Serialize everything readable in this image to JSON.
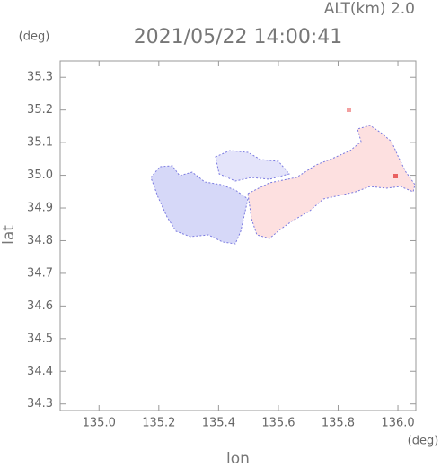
{
  "chart_data": {
    "type": "map",
    "title": "2021/05/22 14:00:41",
    "subtitle": "ALT(km)  2.0",
    "x_label": "lon",
    "y_label": "lat",
    "x_unit": "(deg)",
    "y_unit": "(deg)",
    "xlim": [
      134.87,
      136.06
    ],
    "ylim": [
      34.28,
      35.35
    ],
    "xticks": [
      {
        "value": 135.0,
        "label": "135.0"
      },
      135.2,
      135.4,
      135.6,
      135.8,
      {
        "value": 136.0,
        "label": "136.0"
      }
    ],
    "yticks": [
      34.3,
      34.4,
      34.5,
      34.6,
      34.7,
      34.8,
      34.9,
      {
        "value": 35.0,
        "label": "35.0"
      },
      35.1,
      35.2,
      35.3
    ]
  }
}
